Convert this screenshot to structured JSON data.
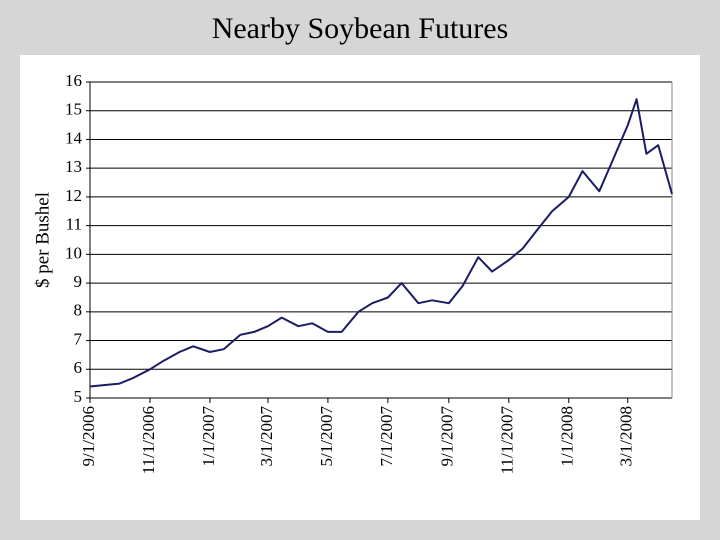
{
  "chart_data": {
    "type": "line",
    "title": "Nearby Soybean Futures",
    "y_label": "$ per Bushel",
    "x": [
      "9/1/2006",
      "9/15/2006",
      "10/1/2006",
      "10/15/2006",
      "11/1/2006",
      "11/15/2006",
      "12/1/2006",
      "12/15/2006",
      "1/1/2007",
      "1/15/2007",
      "2/1/2007",
      "2/15/2007",
      "3/1/2007",
      "3/15/2007",
      "4/1/2007",
      "4/15/2007",
      "5/1/2007",
      "5/15/2007",
      "6/1/2007",
      "6/15/2007",
      "7/1/2007",
      "7/15/2007",
      "8/1/2007",
      "8/15/2007",
      "9/1/2007",
      "9/15/2007",
      "10/1/2007",
      "10/15/2007",
      "11/1/2007",
      "11/15/2007",
      "12/1/2007",
      "12/15/2007",
      "1/1/2008",
      "1/15/2008",
      "2/1/2008",
      "2/15/2008",
      "3/1/2008",
      "3/10/2008",
      "3/20/2008",
      "4/1/2008",
      "4/15/2008"
    ],
    "series": [
      {
        "name": "Nearby Soybean Futures",
        "color": "#1c1c66",
        "values": [
          5.4,
          5.45,
          5.5,
          5.7,
          6.0,
          6.3,
          6.6,
          6.8,
          6.6,
          6.7,
          7.2,
          7.3,
          7.5,
          7.8,
          7.5,
          7.6,
          7.3,
          7.3,
          8.0,
          8.3,
          8.5,
          9.0,
          8.3,
          8.4,
          8.3,
          8.9,
          9.9,
          9.4,
          9.8,
          10.2,
          10.9,
          11.5,
          12.0,
          12.9,
          12.2,
          13.3,
          14.5,
          15.4,
          13.5,
          13.8,
          12.1
        ]
      }
    ],
    "xlim": [
      "9/1/2006",
      "4/15/2008"
    ],
    "xticks": [
      "9/1/2006",
      "11/1/2006",
      "1/1/2007",
      "3/1/2007",
      "5/1/2007",
      "7/1/2007",
      "9/1/2007",
      "11/1/2007",
      "1/1/2008",
      "3/1/2008"
    ],
    "ylim": [
      5,
      16
    ],
    "yticks": [
      5,
      6,
      7,
      8,
      9,
      10,
      11,
      12,
      13,
      14,
      15,
      16
    ],
    "grid": true
  }
}
